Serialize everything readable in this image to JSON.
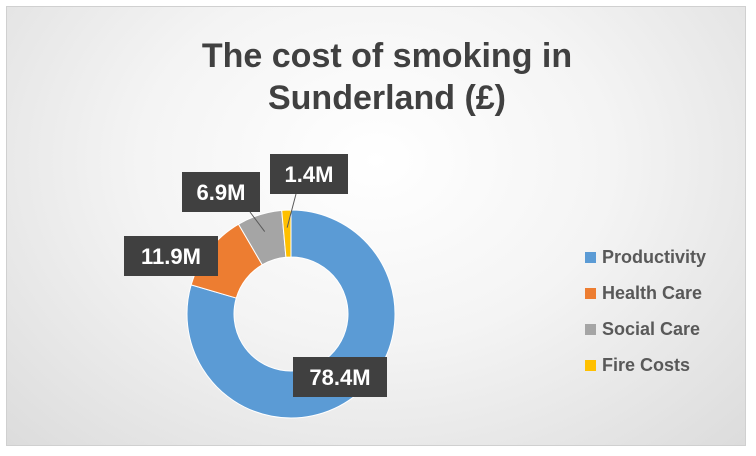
{
  "chart_data": {
    "type": "pie",
    "title": "The cost of smoking in Sunderland (£)",
    "title_lines": [
      "The cost of smoking in",
      "Sunderland (£)"
    ],
    "donut": true,
    "categories": [
      "Productivity",
      "Health Care",
      "Social Care",
      "Fire Costs"
    ],
    "values": [
      78.4,
      11.9,
      6.9,
      1.4
    ],
    "data_labels": [
      "78.4M",
      "11.9M",
      "6.9M",
      "1.4M"
    ],
    "colors": [
      "#5b9bd5",
      "#ed7d31",
      "#a5a5a5",
      "#ffc000"
    ],
    "legend_position": "right"
  }
}
